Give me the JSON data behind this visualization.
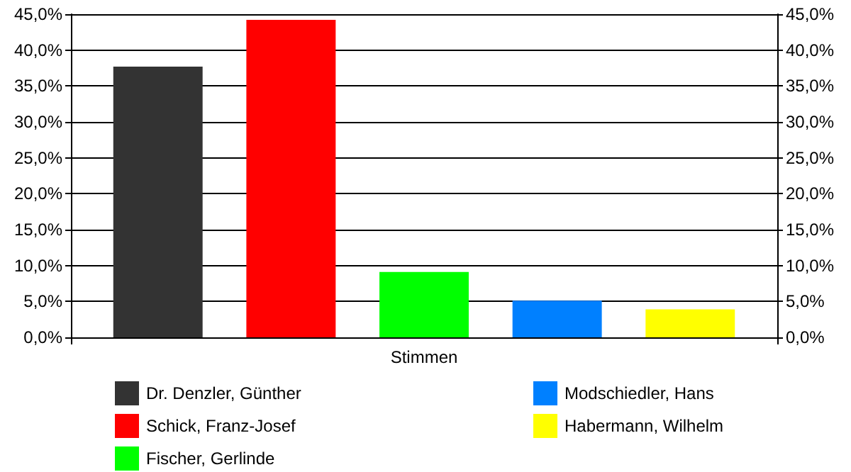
{
  "chart_data": {
    "type": "bar",
    "categories": [
      "Stimmen"
    ],
    "series": [
      {
        "name": "Dr. Denzler, Günther",
        "color": "#333333",
        "values": [
          37.7
        ]
      },
      {
        "name": "Schick, Franz-Josef",
        "color": "#ff0000",
        "values": [
          44.2
        ]
      },
      {
        "name": "Fischer, Gerlinde",
        "color": "#00ff00",
        "values": [
          9.1
        ]
      },
      {
        "name": "Modschiedler, Hans",
        "color": "#0080ff",
        "values": [
          5.1
        ]
      },
      {
        "name": "Habermann, Wilhelm",
        "color": "#ffff00",
        "values": [
          3.9
        ]
      }
    ],
    "ylim": [
      0,
      45
    ],
    "yticks": [
      {
        "value": 0,
        "label": "0,0%"
      },
      {
        "value": 5,
        "label": "5,0%"
      },
      {
        "value": 10,
        "label": "10,0%"
      },
      {
        "value": 15,
        "label": "15,0%"
      },
      {
        "value": 20,
        "label": "20,0%"
      },
      {
        "value": 25,
        "label": "25,0%"
      },
      {
        "value": 30,
        "label": "30,0%"
      },
      {
        "value": 35,
        "label": "35,0%"
      },
      {
        "value": 40,
        "label": "40,0%"
      },
      {
        "value": 45,
        "label": "45,0%"
      }
    ],
    "grid": "y",
    "legend": "bottom"
  }
}
